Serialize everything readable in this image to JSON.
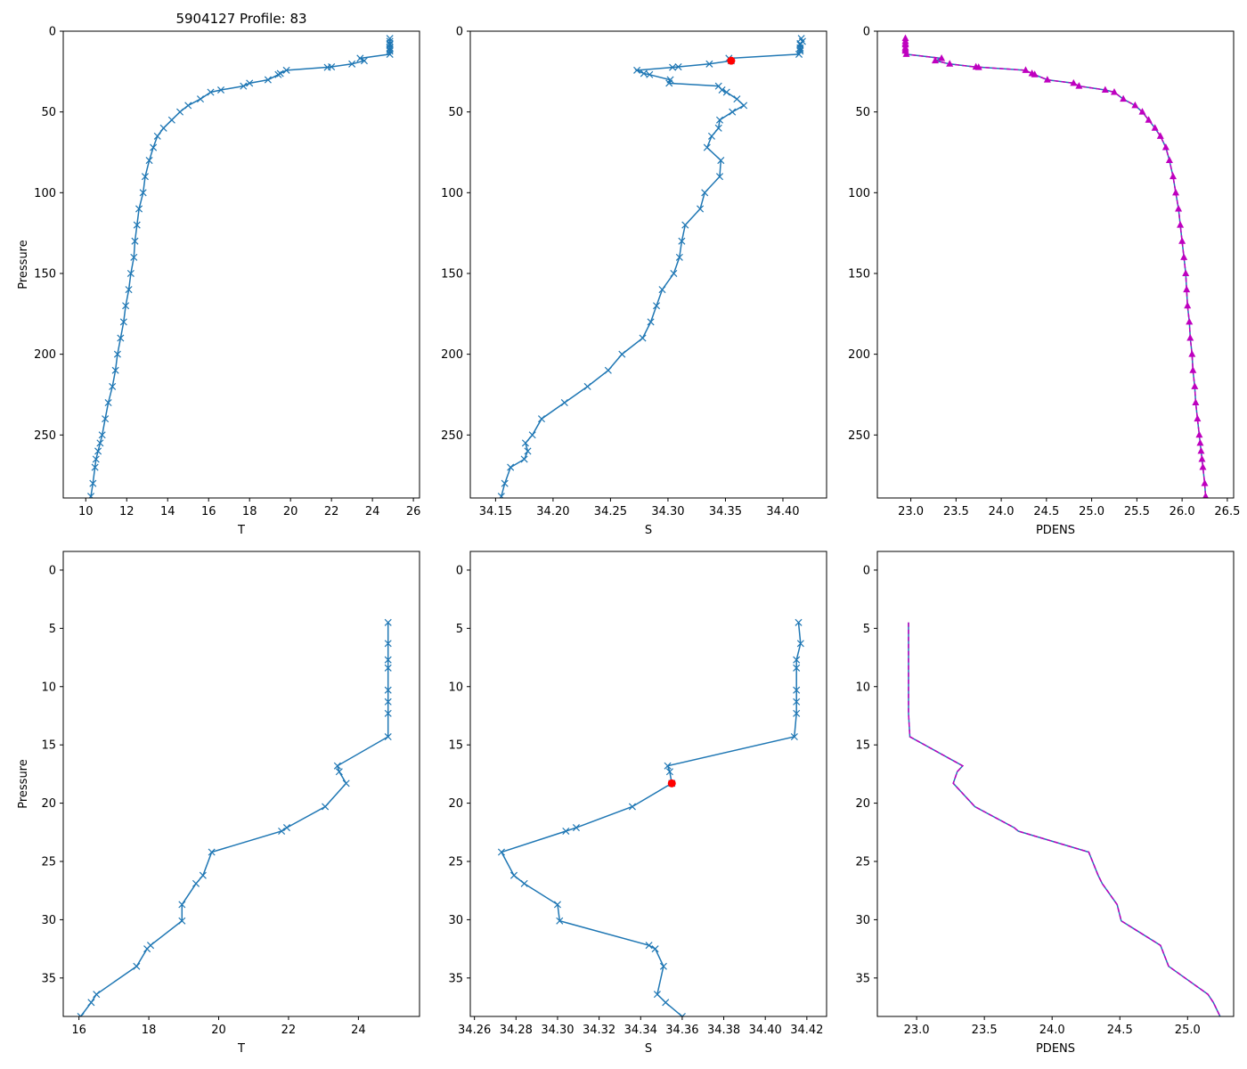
{
  "figure_title": "5904127 Profile: 83",
  "colors": {
    "series": "#1f77b4",
    "density": "#bf00bf",
    "flag": "#ff0000",
    "axis": "#000000"
  },
  "chart_data": [
    {
      "id": "top-temperature",
      "type": "line",
      "title": "5904127 Profile: 83",
      "xlabel": "T",
      "ylabel": "Pressure",
      "xlim": [
        8.9,
        26.3
      ],
      "ylim": [
        289,
        0
      ],
      "xticks": [
        10,
        12,
        14,
        16,
        18,
        20,
        22,
        24,
        26
      ],
      "yticks": [
        0,
        50,
        100,
        150,
        200,
        250
      ],
      "marker": "x",
      "series": [
        {
          "name": "T",
          "x": [
            24.85,
            24.85,
            24.85,
            24.85,
            24.85,
            24.85,
            24.85,
            24.85,
            23.4,
            23.6,
            23.0,
            21.8,
            22.0,
            19.8,
            19.5,
            19.4,
            18.9,
            18.0,
            17.7,
            16.6,
            16.1,
            15.6,
            15.0,
            14.6,
            14.2,
            13.8,
            13.5,
            13.3,
            13.1,
            12.9,
            12.8,
            12.6,
            12.5,
            12.4,
            12.35,
            12.2,
            12.1,
            11.95,
            11.85,
            11.7,
            11.55,
            11.45,
            11.3,
            11.1,
            10.95,
            10.8,
            10.7,
            10.6,
            10.5,
            10.45,
            10.35,
            10.25
          ],
          "y": [
            4.5,
            6.3,
            7.7,
            8.4,
            10.3,
            11.3,
            12.3,
            14.3,
            16.8,
            18.3,
            20.3,
            22.4,
            22.1,
            24.2,
            26.2,
            26.9,
            30.1,
            32.2,
            34.0,
            36.4,
            37.8,
            42,
            46,
            50,
            55,
            60,
            65,
            72,
            80,
            90,
            100,
            110,
            120,
            130,
            140,
            150,
            160,
            170,
            180,
            190,
            200,
            210,
            220,
            230,
            240,
            250,
            255,
            260,
            265,
            270,
            280,
            288
          ]
        }
      ]
    },
    {
      "id": "top-salinity",
      "type": "line",
      "title": "",
      "xlabel": "S",
      "ylabel": "",
      "xlim": [
        34.128,
        34.438
      ],
      "ylim": [
        289,
        0
      ],
      "xticks": [
        34.15,
        34.2,
        34.25,
        34.3,
        34.35,
        34.4
      ],
      "xtick_labels": [
        "34.15",
        "34.20",
        "34.25",
        "34.30",
        "34.35",
        "34.40"
      ],
      "yticks": [
        0,
        50,
        100,
        150,
        200,
        250
      ],
      "marker": "x",
      "flag_point": {
        "x": 34.355,
        "y": 18.3
      },
      "series": [
        {
          "name": "S",
          "x": [
            34.416,
            34.417,
            34.415,
            34.415,
            34.415,
            34.415,
            34.415,
            34.414,
            34.353,
            34.355,
            34.336,
            34.304,
            34.309,
            34.273,
            34.279,
            34.284,
            34.302,
            34.301,
            34.344,
            34.347,
            34.351,
            34.36,
            34.366,
            34.356,
            34.345,
            34.344,
            34.338,
            34.334,
            34.346,
            34.345,
            34.332,
            34.328,
            34.315,
            34.312,
            34.31,
            34.305,
            34.295,
            34.29,
            34.285,
            34.278,
            34.26,
            34.248,
            34.23,
            34.21,
            34.19,
            34.182,
            34.176,
            34.178,
            34.175,
            34.163,
            34.158,
            34.155
          ],
          "y": [
            4.5,
            6.3,
            7.7,
            8.4,
            10.3,
            11.3,
            12.3,
            14.3,
            16.8,
            18.3,
            20.3,
            22.4,
            22.1,
            24.2,
            26.2,
            26.9,
            30.1,
            32.2,
            34.0,
            36.4,
            37.8,
            42,
            46,
            50,
            55,
            60,
            65,
            72,
            80,
            90,
            100,
            110,
            120,
            130,
            140,
            150,
            160,
            170,
            180,
            190,
            200,
            210,
            220,
            230,
            240,
            250,
            255,
            260,
            265,
            270,
            280,
            288
          ]
        }
      ]
    },
    {
      "id": "top-density",
      "type": "line",
      "title": "",
      "xlabel": "PDENS",
      "ylabel": "",
      "xlim": [
        22.63,
        26.57
      ],
      "ylim": [
        289,
        0
      ],
      "xticks": [
        23.0,
        23.5,
        24.0,
        24.5,
        25.0,
        25.5,
        26.0,
        26.5
      ],
      "xtick_labels": [
        "23.0",
        "23.5",
        "24.0",
        "24.5",
        "25.0",
        "25.5",
        "26.0",
        "26.5"
      ],
      "yticks": [
        0,
        50,
        100,
        150,
        200,
        250
      ],
      "marker": "triangle",
      "series": [
        {
          "name": "PDENS",
          "x": [
            22.94,
            22.94,
            22.94,
            22.94,
            22.94,
            22.94,
            22.94,
            22.95,
            23.34,
            23.27,
            23.43,
            23.75,
            23.72,
            24.27,
            24.34,
            24.37,
            24.51,
            24.8,
            24.86,
            25.15,
            25.25,
            25.35,
            25.48,
            25.56,
            25.63,
            25.7,
            25.76,
            25.82,
            25.86,
            25.9,
            25.93,
            25.96,
            25.98,
            26.0,
            26.02,
            26.04,
            26.05,
            26.06,
            26.08,
            26.09,
            26.11,
            26.12,
            26.14,
            26.15,
            26.17,
            26.19,
            26.2,
            26.21,
            26.22,
            26.23,
            26.25,
            26.26
          ],
          "y": [
            4.5,
            6.3,
            7.7,
            8.4,
            10.3,
            11.3,
            12.3,
            14.3,
            16.8,
            18.3,
            20.3,
            22.4,
            22.1,
            24.2,
            26.2,
            26.9,
            30.1,
            32.2,
            34.0,
            36.4,
            37.8,
            42,
            46,
            50,
            55,
            60,
            65,
            72,
            80,
            90,
            100,
            110,
            120,
            130,
            140,
            150,
            160,
            170,
            180,
            190,
            200,
            210,
            220,
            230,
            240,
            250,
            255,
            260,
            265,
            270,
            280,
            288
          ]
        }
      ]
    },
    {
      "id": "bottom-temperature",
      "type": "line",
      "title": "",
      "xlabel": "T",
      "ylabel": "Pressure",
      "xlim": [
        15.55,
        25.75
      ],
      "ylim": [
        38.3,
        -1.6
      ],
      "xticks": [
        16,
        18,
        20,
        22,
        24
      ],
      "yticks": [
        0,
        5,
        10,
        15,
        20,
        25,
        30,
        35
      ],
      "marker": "x",
      "series": [
        {
          "name": "T",
          "x": [
            24.85,
            24.85,
            24.85,
            24.85,
            24.85,
            24.85,
            24.85,
            24.85,
            23.4,
            23.45,
            23.65,
            23.05,
            21.95,
            21.8,
            19.8,
            19.55,
            19.35,
            18.95,
            18.95,
            18.05,
            17.95,
            17.65,
            16.5,
            16.35,
            16.05
          ],
          "y": [
            4.5,
            6.3,
            7.7,
            8.4,
            10.3,
            11.3,
            12.3,
            14.3,
            16.8,
            17.3,
            18.3,
            20.3,
            22.1,
            22.4,
            24.2,
            26.2,
            26.9,
            28.7,
            30.1,
            32.2,
            32.5,
            34.0,
            36.4,
            37.1,
            38.3
          ]
        }
      ]
    },
    {
      "id": "bottom-salinity",
      "type": "line",
      "title": "",
      "xlabel": "S",
      "ylabel": "",
      "xlim": [
        34.258,
        34.4295
      ],
      "ylim": [
        38.3,
        -1.6
      ],
      "xticks": [
        34.26,
        34.28,
        34.3,
        34.32,
        34.34,
        34.36,
        34.38,
        34.4,
        34.42
      ],
      "xtick_labels": [
        "34.26",
        "34.28",
        "34.30",
        "34.32",
        "34.34",
        "34.36",
        "34.38",
        "34.40",
        "34.42"
      ],
      "yticks": [
        0,
        5,
        10,
        15,
        20,
        25,
        30,
        35
      ],
      "marker": "x",
      "flag_point": {
        "x": 34.355,
        "y": 18.3
      },
      "series": [
        {
          "name": "S",
          "x": [
            34.416,
            34.417,
            34.415,
            34.415,
            34.415,
            34.415,
            34.415,
            34.414,
            34.353,
            34.354,
            34.355,
            34.336,
            34.309,
            34.304,
            34.273,
            34.279,
            34.284,
            34.3,
            34.301,
            34.344,
            34.347,
            34.351,
            34.348,
            34.352,
            34.36
          ],
          "y": [
            4.5,
            6.3,
            7.7,
            8.4,
            10.3,
            11.3,
            12.3,
            14.3,
            16.8,
            17.3,
            18.3,
            20.3,
            22.1,
            22.4,
            24.2,
            26.2,
            26.9,
            28.7,
            30.1,
            32.2,
            32.5,
            34.0,
            36.4,
            37.1,
            38.3
          ]
        }
      ]
    },
    {
      "id": "bottom-density",
      "type": "line",
      "title": "",
      "xlabel": "PDENS",
      "ylabel": "",
      "xlim": [
        22.71,
        25.34
      ],
      "ylim": [
        38.3,
        -1.6
      ],
      "xticks": [
        23.0,
        23.5,
        24.0,
        24.5,
        25.0
      ],
      "xtick_labels": [
        "23.0",
        "23.5",
        "24.0",
        "24.5",
        "25.0"
      ],
      "yticks": [
        0,
        5,
        10,
        15,
        20,
        25,
        30,
        35
      ],
      "marker": "none",
      "series": [
        {
          "name": "PDENS",
          "x": [
            22.94,
            22.94,
            22.94,
            22.94,
            22.94,
            22.94,
            22.94,
            22.95,
            23.34,
            23.3,
            23.27,
            23.43,
            23.72,
            23.75,
            24.27,
            24.34,
            24.37,
            24.48,
            24.51,
            24.8,
            24.81,
            24.86,
            25.15,
            25.19,
            25.24
          ],
          "y": [
            4.5,
            6.3,
            7.7,
            8.4,
            10.3,
            11.3,
            12.3,
            14.3,
            16.8,
            17.3,
            18.3,
            20.3,
            22.1,
            22.4,
            24.2,
            26.2,
            26.9,
            28.7,
            30.1,
            32.2,
            32.5,
            34.0,
            36.4,
            37.1,
            38.3
          ]
        }
      ]
    }
  ]
}
